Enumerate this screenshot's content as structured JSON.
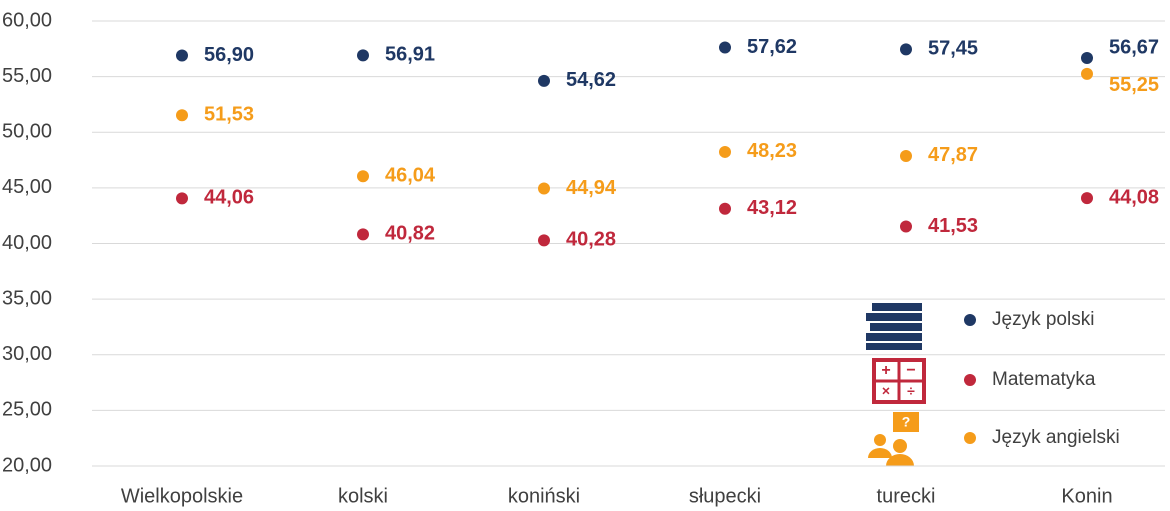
{
  "chart_data": {
    "type": "dot",
    "categories": [
      "Wielkopolskie",
      "kolski",
      "koniński",
      "słupecki",
      "turecki",
      "Konin"
    ],
    "series": [
      {
        "name": "Język polski",
        "color": "#1f3864",
        "values": [
          56.9,
          56.91,
          54.62,
          57.62,
          57.45,
          56.67
        ],
        "value_labels": [
          "56,90",
          "56,91",
          "54,62",
          "57,62",
          "57,45",
          "56,67"
        ]
      },
      {
        "name": "Matematyka",
        "color": "#c0283c",
        "values": [
          44.06,
          40.82,
          40.28,
          43.12,
          41.53,
          44.08
        ],
        "value_labels": [
          "44,06",
          "40,82",
          "40,28",
          "43,12",
          "41,53",
          "44,08"
        ]
      },
      {
        "name": "Język angielski",
        "color": "#f59c1a",
        "values": [
          51.53,
          46.04,
          44.94,
          48.23,
          47.87,
          55.25
        ],
        "value_labels": [
          "51,53",
          "46,04",
          "44,94",
          "48,23",
          "47,87",
          "55,25"
        ]
      }
    ],
    "ylim": [
      20,
      60
    ],
    "yticks": [
      {
        "value": 20,
        "label": "20,00"
      },
      {
        "value": 25,
        "label": "25,00"
      },
      {
        "value": 30,
        "label": "30,00"
      },
      {
        "value": 35,
        "label": "35,00"
      },
      {
        "value": 40,
        "label": "40,00"
      },
      {
        "value": 45,
        "label": "45,00"
      },
      {
        "value": 50,
        "label": "50,00"
      },
      {
        "value": 55,
        "label": "55,00"
      },
      {
        "value": 60,
        "label": "60,00"
      }
    ],
    "grid": true,
    "legend": "lower right"
  }
}
